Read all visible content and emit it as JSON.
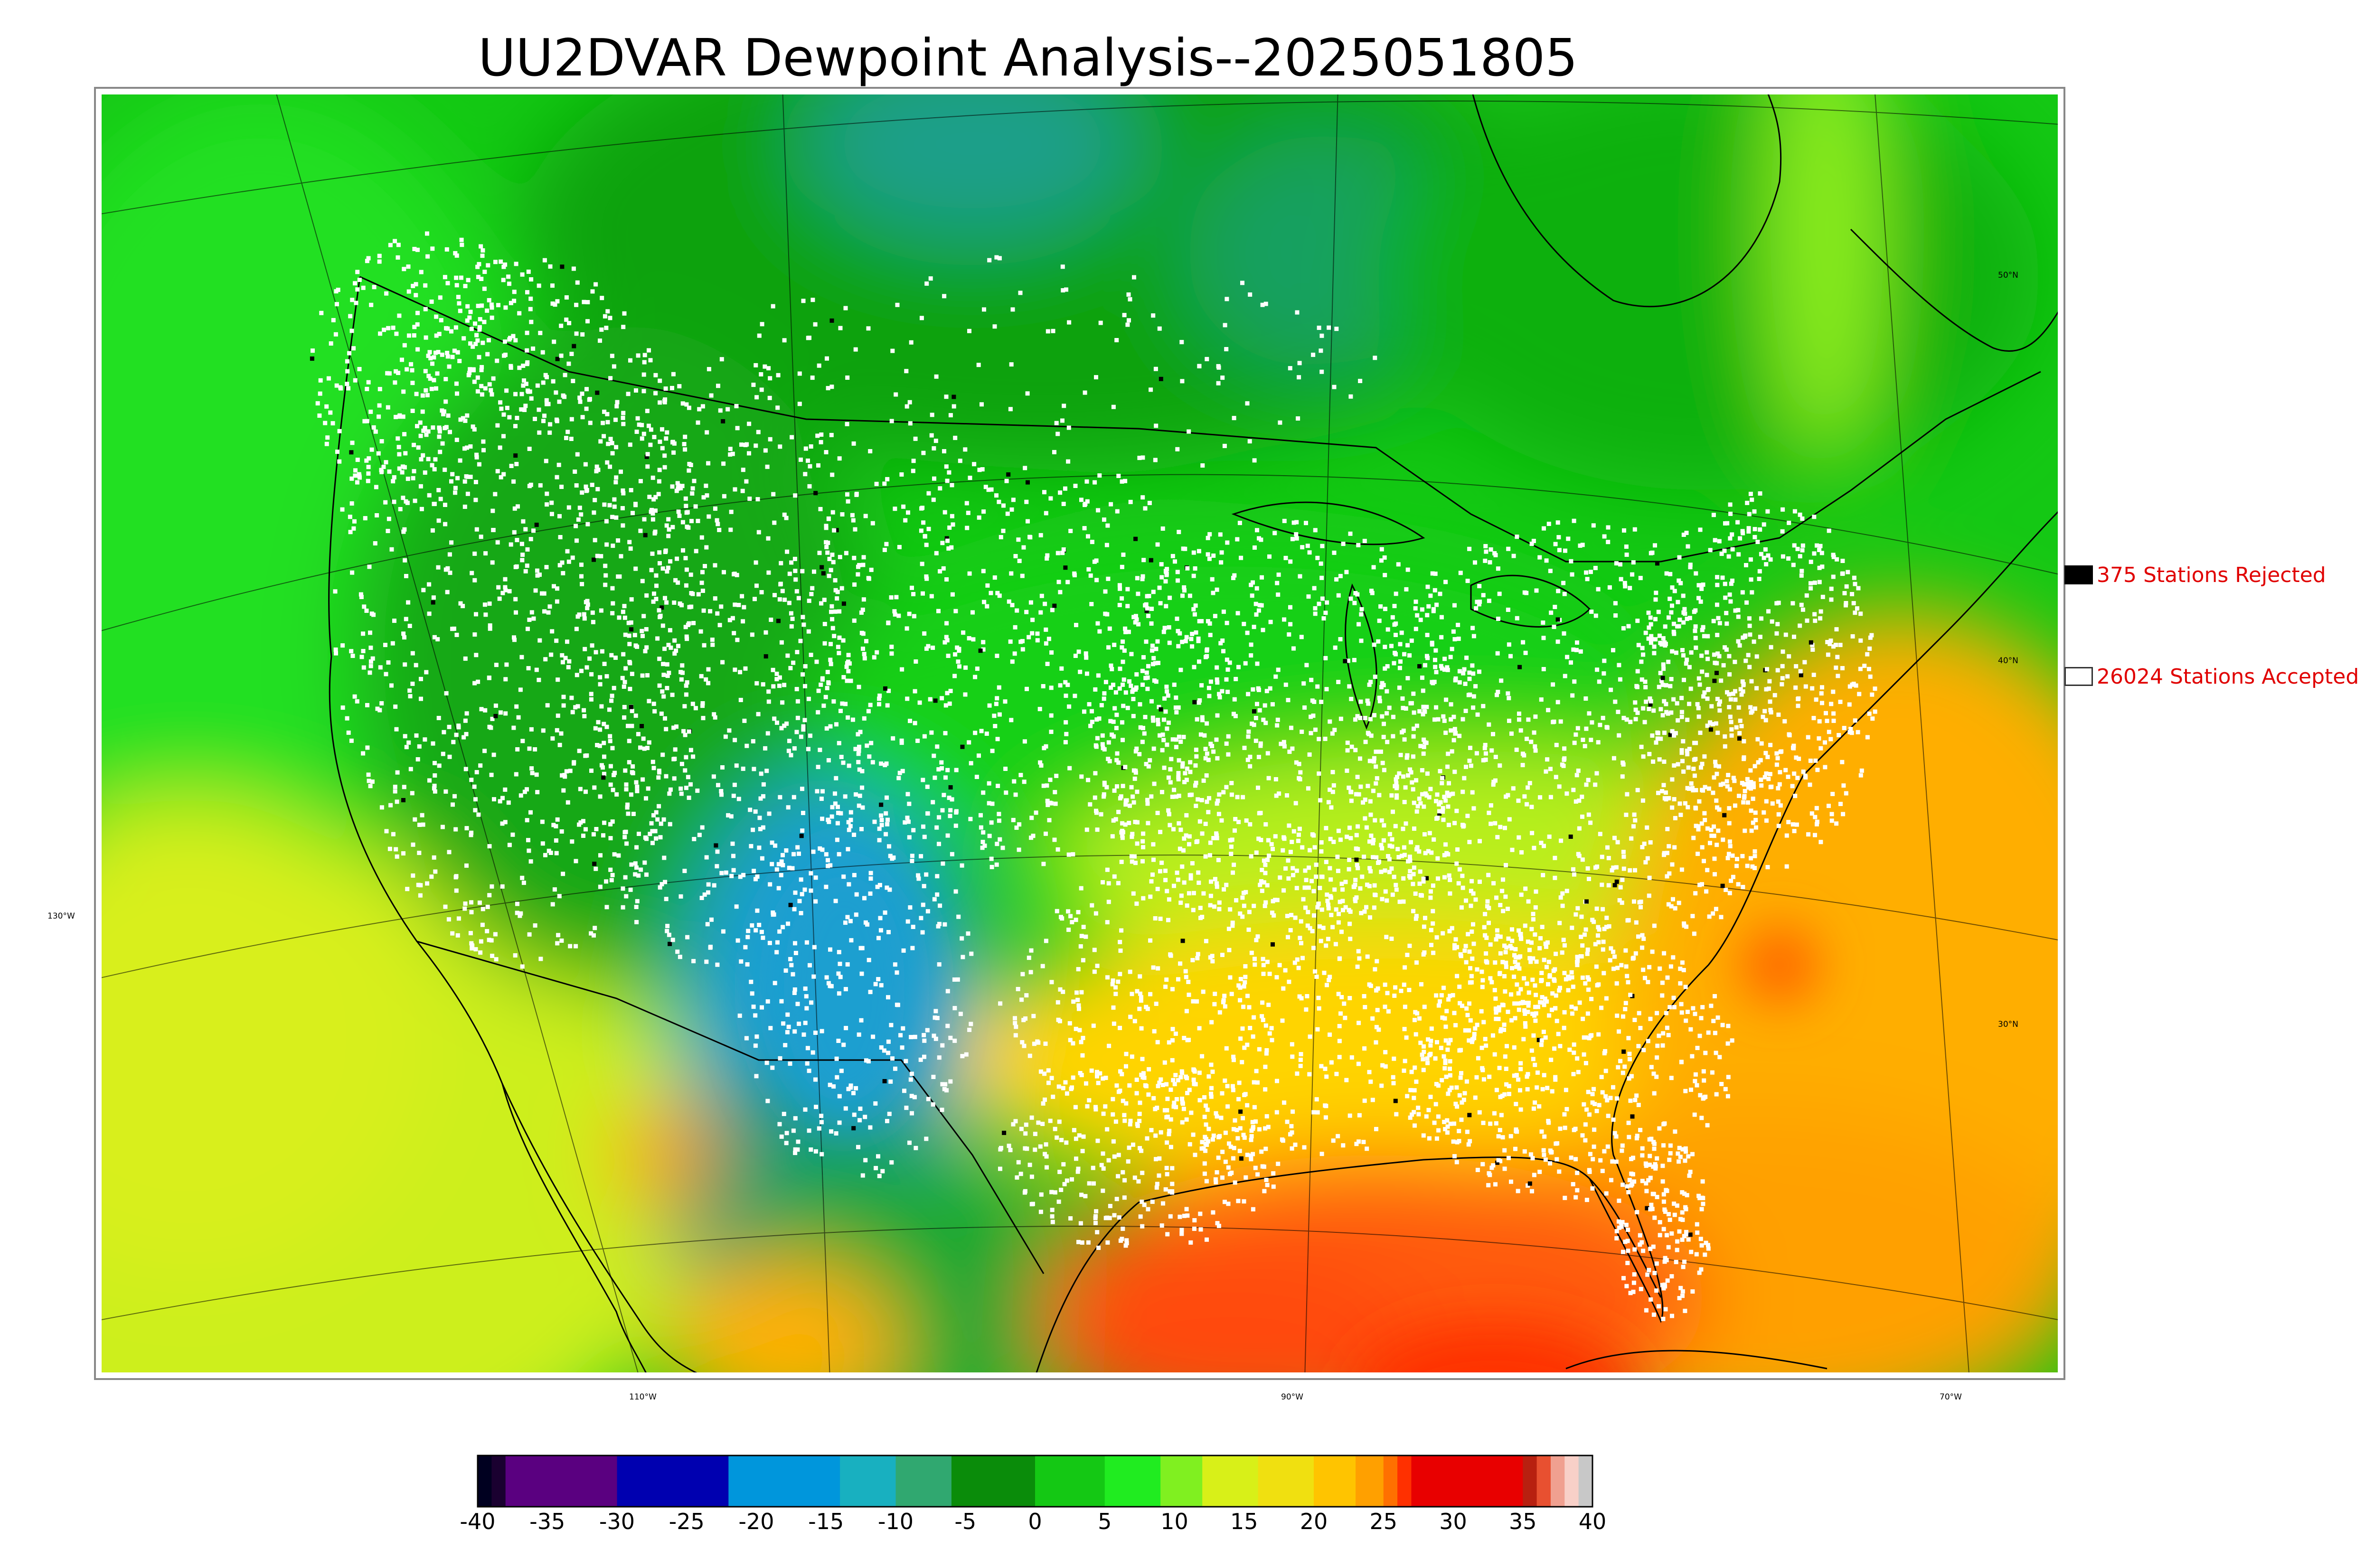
{
  "title": "UU2DVAR Dewpoint Analysis--2025051805",
  "map": {
    "longitude_labels": [
      "130°W",
      "110°W",
      "90°W",
      "70°W"
    ],
    "latitude_labels": [
      "50°N",
      "40°N",
      "30°N"
    ],
    "colors": {
      "cold_blue": "#1e9fd0",
      "mid_green": "#14a614",
      "bright_green": "#22e022",
      "yellow_green": "#cdef1a",
      "yellow": "#e6e61a",
      "orange": "#ffae00",
      "red_orange": "#ff5a0a",
      "red": "#e80000",
      "station_accepted": "#ffffff",
      "station_rejected": "#000000"
    }
  },
  "legend": {
    "rejected_label": "375 Stations Rejected",
    "accepted_label": "26024 Stations Accepted",
    "rejected_color": "#000000",
    "accepted_color": "#ffffff"
  },
  "colorbar": {
    "ticks": [
      "-40",
      "-35",
      "-30",
      "-25",
      "-20",
      "-15",
      "-10",
      "-5",
      "0",
      "5",
      "10",
      "15",
      "20",
      "25",
      "30",
      "35",
      "40"
    ],
    "range": [
      -40,
      40
    ],
    "segments": [
      {
        "from": -40,
        "to": -39,
        "color": "#000020"
      },
      {
        "from": -39,
        "to": -38,
        "color": "#1a0030"
      },
      {
        "from": -38,
        "to": -30,
        "color": "#5a0080"
      },
      {
        "from": -30,
        "to": -22,
        "color": "#0000b0"
      },
      {
        "from": -22,
        "to": -14,
        "color": "#0096dc"
      },
      {
        "from": -14,
        "to": -10,
        "color": "#18b0c0"
      },
      {
        "from": -10,
        "to": -6,
        "color": "#30a870"
      },
      {
        "from": -6,
        "to": 0,
        "color": "#0a8c0a"
      },
      {
        "from": 0,
        "to": 5,
        "color": "#14c814"
      },
      {
        "from": 5,
        "to": 9,
        "color": "#20ec20"
      },
      {
        "from": 9,
        "to": 12,
        "color": "#80f020"
      },
      {
        "from": 12,
        "to": 16,
        "color": "#d8f018"
      },
      {
        "from": 16,
        "to": 20,
        "color": "#f0e010"
      },
      {
        "from": 20,
        "to": 23,
        "color": "#ffc400"
      },
      {
        "from": 23,
        "to": 25,
        "color": "#ffa000"
      },
      {
        "from": 25,
        "to": 26,
        "color": "#ff7000"
      },
      {
        "from": 26,
        "to": 27,
        "color": "#ff3000"
      },
      {
        "from": 27,
        "to": 35,
        "color": "#e80000"
      },
      {
        "from": 35,
        "to": 36,
        "color": "#b82010"
      },
      {
        "from": 36,
        "to": 37,
        "color": "#e85030"
      },
      {
        "from": 37,
        "to": 38,
        "color": "#f0a090"
      },
      {
        "from": 38,
        "to": 39,
        "color": "#f8d0c8"
      },
      {
        "from": 39,
        "to": 40,
        "color": "#c8c8c8"
      }
    ]
  }
}
